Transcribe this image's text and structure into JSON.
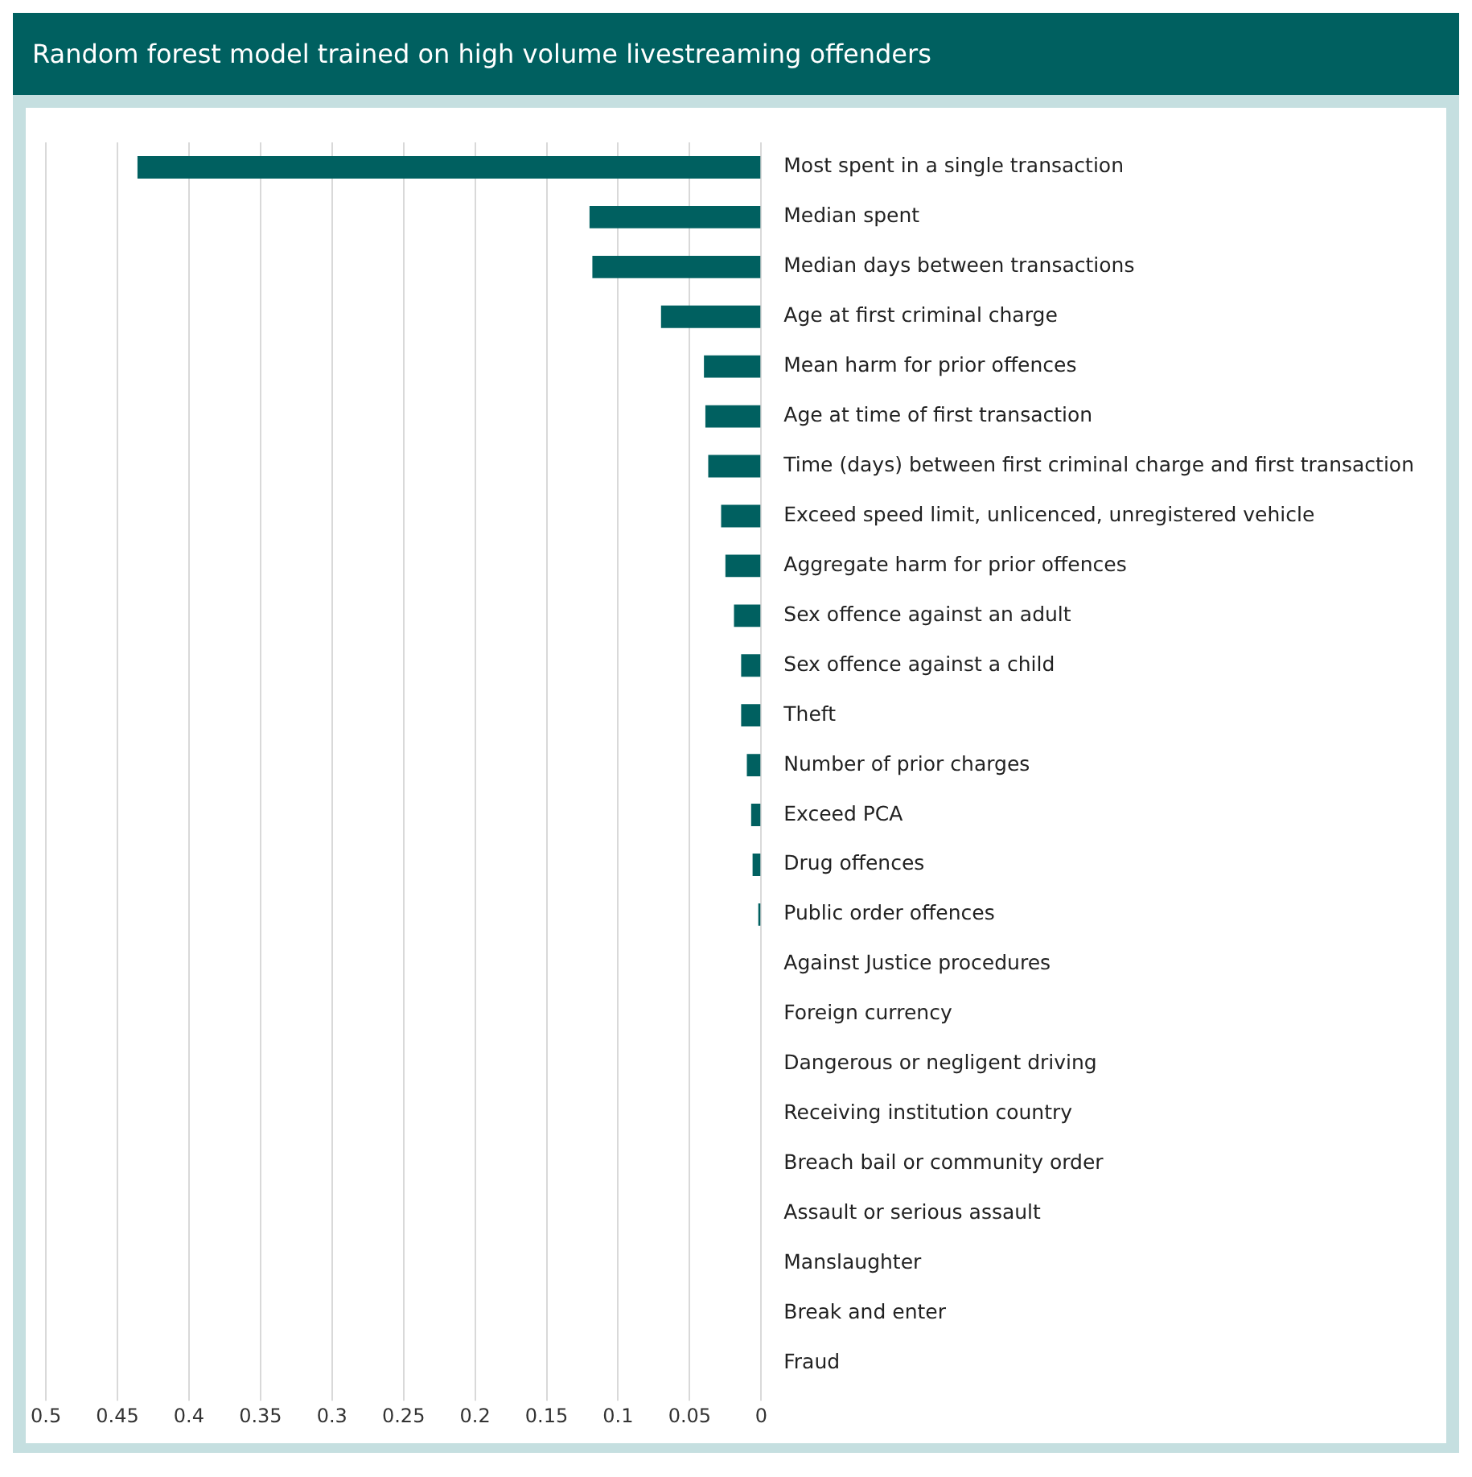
{
  "chart_data": {
    "type": "bar",
    "orientation": "horizontal",
    "title": "Random forest model trained on high volume livestreaming offenders",
    "categories": [
      "Most spent in a single transaction",
      "Median spent",
      "Median days between transactions",
      "Age at first criminal charge",
      "Mean harm for prior offences",
      "Age at time of first transaction",
      "Time (days) between first criminal charge and first transaction",
      "Exceed speed limit, unlicenced, unregistered vehicle",
      "Aggregate harm for prior offences",
      "Sex offence against an adult",
      "Sex offence against a child",
      "Theft",
      "Number of prior charges",
      "Exceed PCA",
      "Drug offences",
      "Public order offences",
      "Against Justice procedures",
      "Foreign currency",
      "Dangerous or negligent driving",
      "Receiving institution country",
      "Breach bail or community order",
      "Assault or serious assault",
      "Manslaughter",
      "Break and enter",
      "Fraud"
    ],
    "values": [
      0.436,
      0.12,
      0.118,
      0.07,
      0.04,
      0.039,
      0.037,
      0.028,
      0.025,
      0.019,
      0.014,
      0.014,
      0.01,
      0.007,
      0.006,
      0.002,
      0,
      0,
      0,
      0,
      0,
      0,
      0,
      0,
      0
    ],
    "color": "#006060",
    "xlim": [
      0.5,
      0
    ],
    "xticks": [
      0.5,
      0.45,
      0.4,
      0.35,
      0.3,
      0.25,
      0.2,
      0.15,
      0.1,
      0.05,
      0
    ],
    "grid": "x",
    "legend": false
  }
}
